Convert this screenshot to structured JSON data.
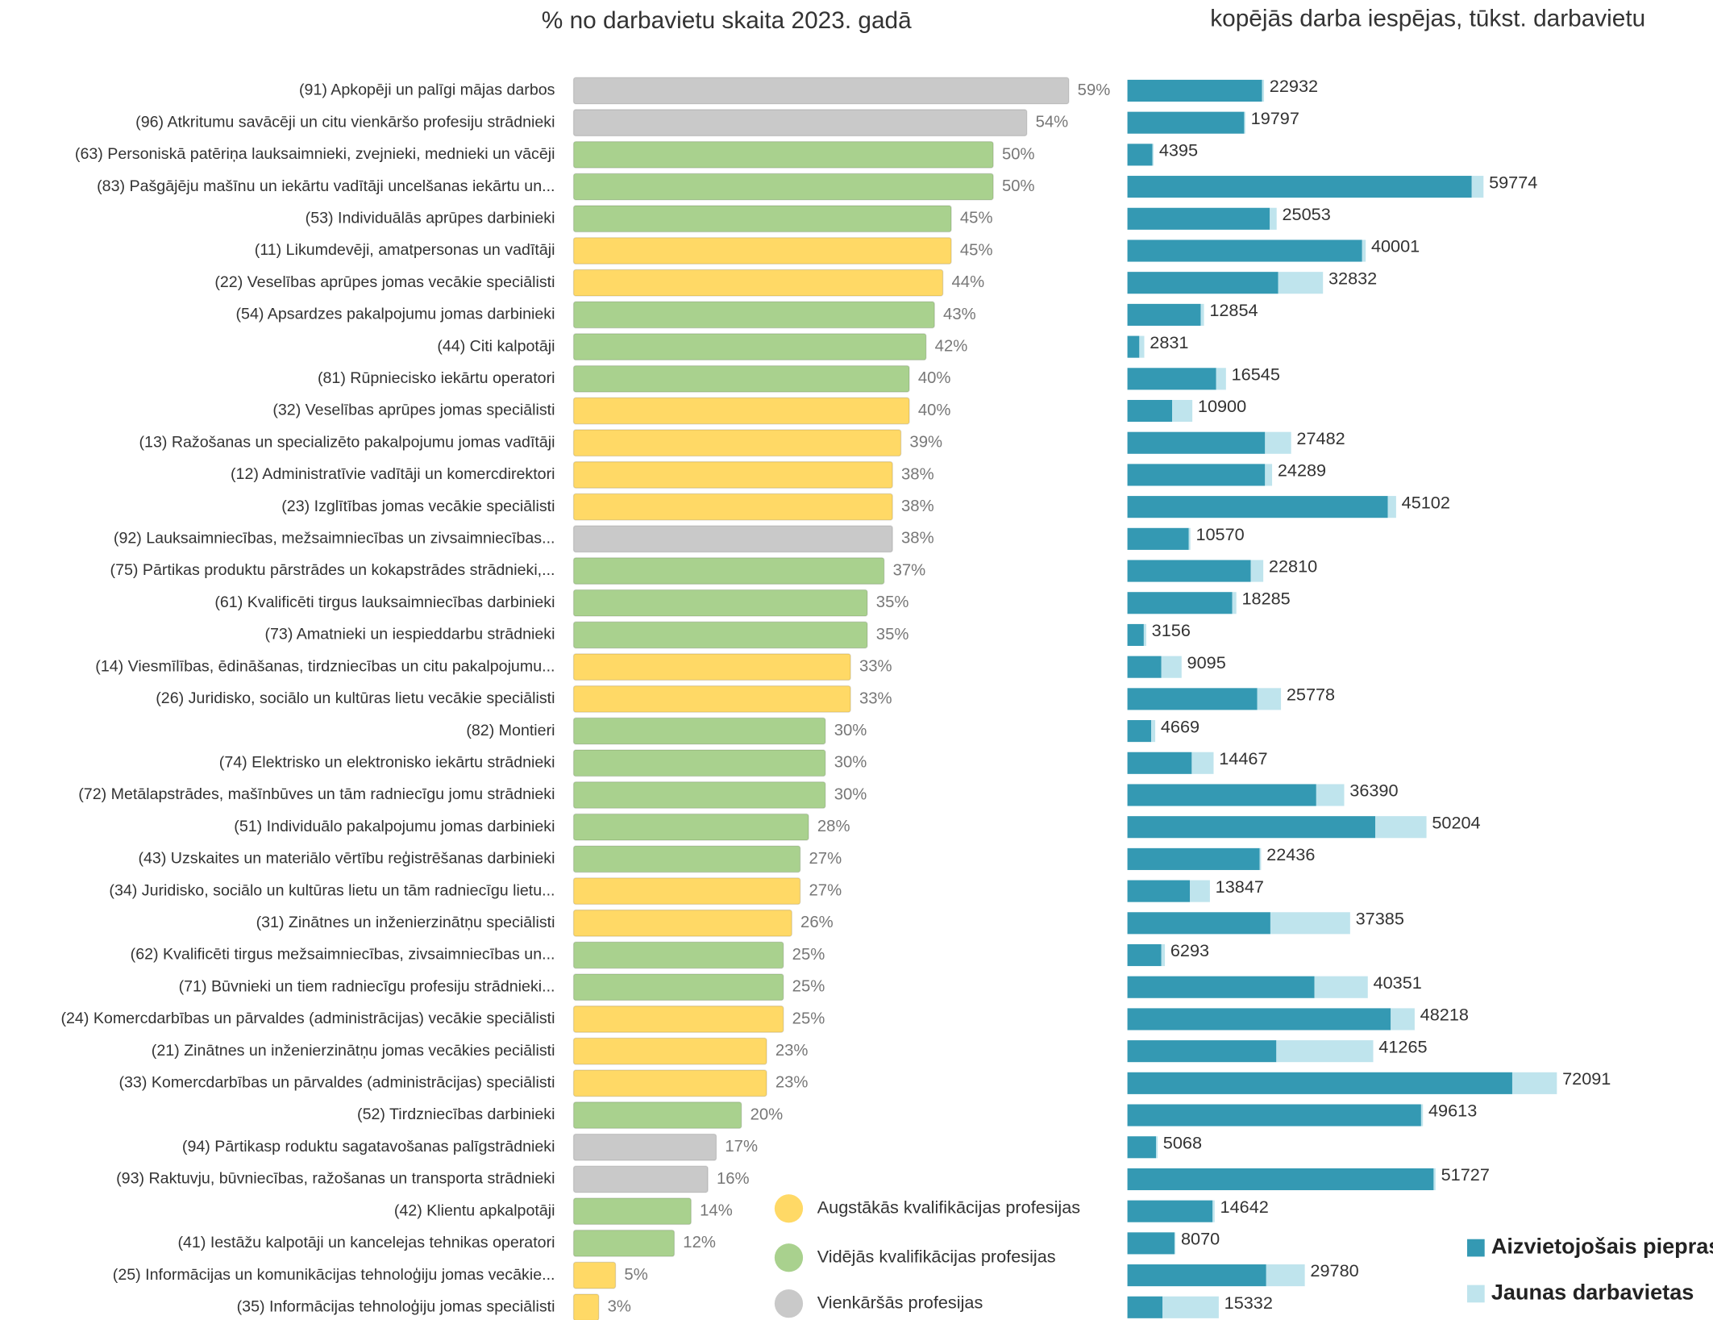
{
  "chart_data": [
    {
      "type": "bar",
      "title": "% no darbavietu skaita 2023. gadā",
      "categories": [
        "(91) Apkopēji un palīgi mājas darbos",
        "(96) Atkritumu savācēji un citu vienkāršo profesiju strādnieki",
        "(63) Personiskā patēriņa lauksaimnieki, zvejnieki, mednieki un vācēji",
        "(83) Pašgājēju mašīnu un iekārtu vadītāji uncelšanas iekārtu un...",
        "(53) Individuālās aprūpes darbinieki",
        "(11) Likumdevēji, amatpersonas un vadītāji",
        "(22) Veselības aprūpes jomas vecākie speciālisti",
        "(54) Apsardzes pakalpojumu jomas darbinieki",
        "(44) Citi kalpotāji",
        "(81) Rūpniecisko iekārtu operatori",
        "(32) Veselības aprūpes jomas speciālisti",
        "(13) Ražošanas un specializēto pakalpojumu jomas vadītāji",
        "(12) Administratīvie vadītāji un komercdirektori",
        "(23) Izglītības jomas vecākie speciālisti",
        "(92) Lauksaimniecības, mežsaimniecības un zivsaimniecības...",
        "(75) Pārtikas produktu pārstrādes un kokapstrādes strādnieki,...",
        "(61) Kvalificēti tirgus lauksaimniecības darbinieki",
        "(73) Amatnieki un iespieddarbu strādnieki",
        "(14) Viesmīlības, ēdināšanas, tirdzniecības un citu pakalpojumu...",
        "(26) Juridisko, sociālo un kultūras lietu vecākie speciālisti",
        "(82) Montieri",
        "(74) Elektrisko un elektronisko iekārtu strādnieki",
        "(72) Metālapstrādes, mašīnbūves un tām radniecīgu jomu strādnieki",
        "(51) Individuālo pakalpojumu jomas darbinieki",
        "(43) Uzskaites un materiālo vērtību reģistrēšanas darbinieki",
        "(34) Juridisko, sociālo un kultūras lietu un tām radniecīgu lietu...",
        "(31) Zinātnes un inženierzinātņu speciālisti",
        "(62) Kvalificēti tirgus mežsaimniecības, zivsaimniecības un...",
        "(71) Būvnieki un tiem radniecīgu profesiju strādnieki...",
        "(24) Komercdarbības un pārvaldes (administrācijas) vecākie speciālisti",
        "(21) Zinātnes un inženierzinātņu jomas vecākies peciālisti",
        "(33) Komercdarbības un pārvaldes (administrācijas) speciālisti",
        "(52) Tirdzniecības darbinieki",
        "(94) Pārtikasp roduktu sagatavošanas palīgstrādnieki",
        "(93) Raktuvju, būvniecības, ražošanas un transporta strādnieki",
        "(42) Klientu apkalpotāji",
        "(41) Iestāžu kalpotāji un kancelejas tehnikas operatori",
        "(25) Informācijas un komunikācijas tehnoloģiju jomas vecākie...",
        "(35) Informācijas tehnoloģiju jomas speciālisti"
      ],
      "values": [
        59,
        54,
        50,
        50,
        45,
        45,
        44,
        43,
        42,
        40,
        40,
        39,
        38,
        38,
        38,
        37,
        35,
        35,
        33,
        33,
        30,
        30,
        30,
        28,
        27,
        27,
        26,
        25,
        25,
        25,
        23,
        23,
        20,
        17,
        16,
        14,
        12,
        5,
        3
      ],
      "value_labels": [
        "59%",
        "54%",
        "50%",
        "50%",
        "45%",
        "45%",
        "44%",
        "43%",
        "42%",
        "40%",
        "40%",
        "39%",
        "38%",
        "38%",
        "38%",
        "37%",
        "35%",
        "35%",
        "33%",
        "33%",
        "30%",
        "30%",
        "30%",
        "28%",
        "27%",
        "27%",
        "26%",
        "25%",
        "25%",
        "25%",
        "23%",
        "23%",
        "20%",
        "17%",
        "16%",
        "14%",
        "12%",
        "5%",
        "3%"
      ],
      "group": [
        2,
        2,
        1,
        1,
        1,
        0,
        0,
        1,
        1,
        1,
        0,
        0,
        0,
        0,
        2,
        1,
        1,
        1,
        0,
        0,
        1,
        1,
        1,
        1,
        1,
        0,
        0,
        1,
        1,
        0,
        0,
        0,
        1,
        2,
        2,
        1,
        1,
        0,
        0
      ],
      "groups": [
        {
          "name": "Augstākās kvalifikācijas profesijas",
          "color": "#ffd966"
        },
        {
          "name": "Vidējās kvalifikācijas profesijas",
          "color": "#a9d18e"
        },
        {
          "name": "Vienkāršās profesijas",
          "color": "#c9c9c9"
        }
      ],
      "xlim": [
        0,
        60
      ]
    },
    {
      "type": "stacked_bar",
      "title": "kopējās darba iespējas, tūkst. darbavietu",
      "series": [
        {
          "name": "Aizvietojošais pieprasījums",
          "color": "#3499b3",
          "values": [
            22600,
            19600,
            4200,
            57800,
            23900,
            39400,
            25300,
            12300,
            2000,
            14900,
            7500,
            23100,
            23100,
            43700,
            10300,
            20700,
            17600,
            2750,
            5700,
            21800,
            4000,
            10800,
            31700,
            41600,
            22200,
            10500,
            24000,
            5700,
            31400,
            44200,
            25000,
            64600,
            49300,
            4800,
            51400,
            14300,
            7900,
            23300,
            5900
          ]
        },
        {
          "name": "Jaunas darbavietas",
          "color": "#bfe4ed",
          "values": [
            332,
            197,
            195,
            1974,
            1153,
            601,
            7532,
            554,
            831,
            1645,
            3400,
            4382,
            1189,
            1402,
            270,
            2110,
            685,
            406,
            3395,
            3978,
            669,
            3667,
            4690,
            8604,
            236,
            3347,
            13385,
            593,
            8951,
            4018,
            16265,
            7491,
            313,
            268,
            327,
            342,
            170,
            6480,
            9432
          ]
        }
      ],
      "totals": [
        22932,
        19797,
        4395,
        59774,
        25053,
        40001,
        32832,
        12854,
        2831,
        16545,
        10900,
        27482,
        24289,
        45102,
        10570,
        22810,
        18285,
        3156,
        9095,
        25778,
        4669,
        14467,
        36390,
        50204,
        22436,
        13847,
        37385,
        6293,
        40351,
        48218,
        41265,
        72091,
        49613,
        5068,
        51727,
        14642,
        8070,
        29780,
        15332
      ],
      "xlim": [
        0,
        75000
      ]
    }
  ]
}
